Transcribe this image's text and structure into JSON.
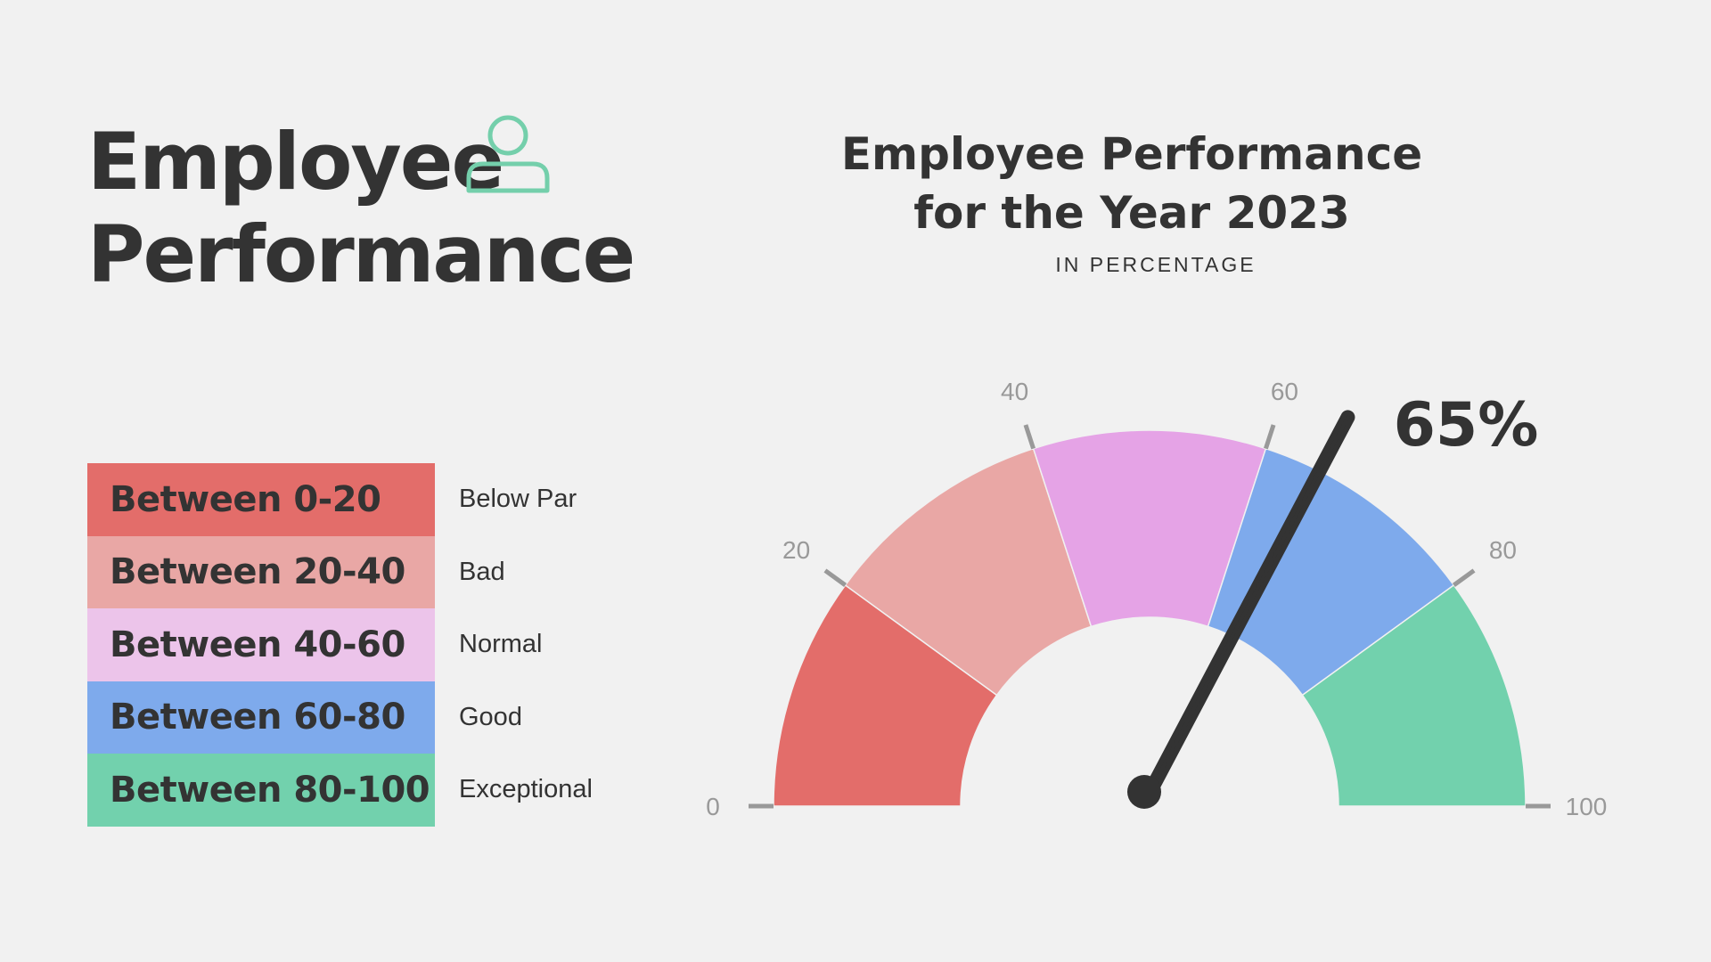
{
  "header": {
    "title_line1": "Employee",
    "title_line2": "Performance",
    "icon": "person-icon",
    "icon_color": "#74cfab"
  },
  "legend": {
    "items": [
      {
        "range": "Between 0-20",
        "label": "Below Par",
        "color": "#e36d6a"
      },
      {
        "range": "Between 20-40",
        "label": "Bad",
        "color": "#e9a7a5"
      },
      {
        "range": "Between 40-60",
        "label": "Normal",
        "color": "#ecc4ea"
      },
      {
        "range": "Between 60-80",
        "label": "Good",
        "color": "#7eaaec"
      },
      {
        "range": "Between 80-100",
        "label": "Exceptional",
        "color": "#72d1ad"
      }
    ]
  },
  "chart_data": {
    "type": "gauge",
    "title_line1": "Employee Performance",
    "title_line2": "for the Year 2023",
    "subtitle": "IN PERCENTAGE",
    "min": 0,
    "max": 100,
    "value": 65,
    "value_label": "65%",
    "ticks": [
      0,
      20,
      40,
      60,
      80,
      100
    ],
    "tick_labels": [
      "0",
      "20",
      "40",
      "60",
      "80",
      "100"
    ],
    "segments": [
      {
        "from": 0,
        "to": 20,
        "color": "#e36d6a"
      },
      {
        "from": 20,
        "to": 40,
        "color": "#e9a7a5"
      },
      {
        "from": 40,
        "to": 60,
        "color": "#e5a3e6"
      },
      {
        "from": 60,
        "to": 80,
        "color": "#7eaaec"
      },
      {
        "from": 80,
        "to": 100,
        "color": "#72d1ad"
      }
    ],
    "needle_color": "#333333"
  }
}
